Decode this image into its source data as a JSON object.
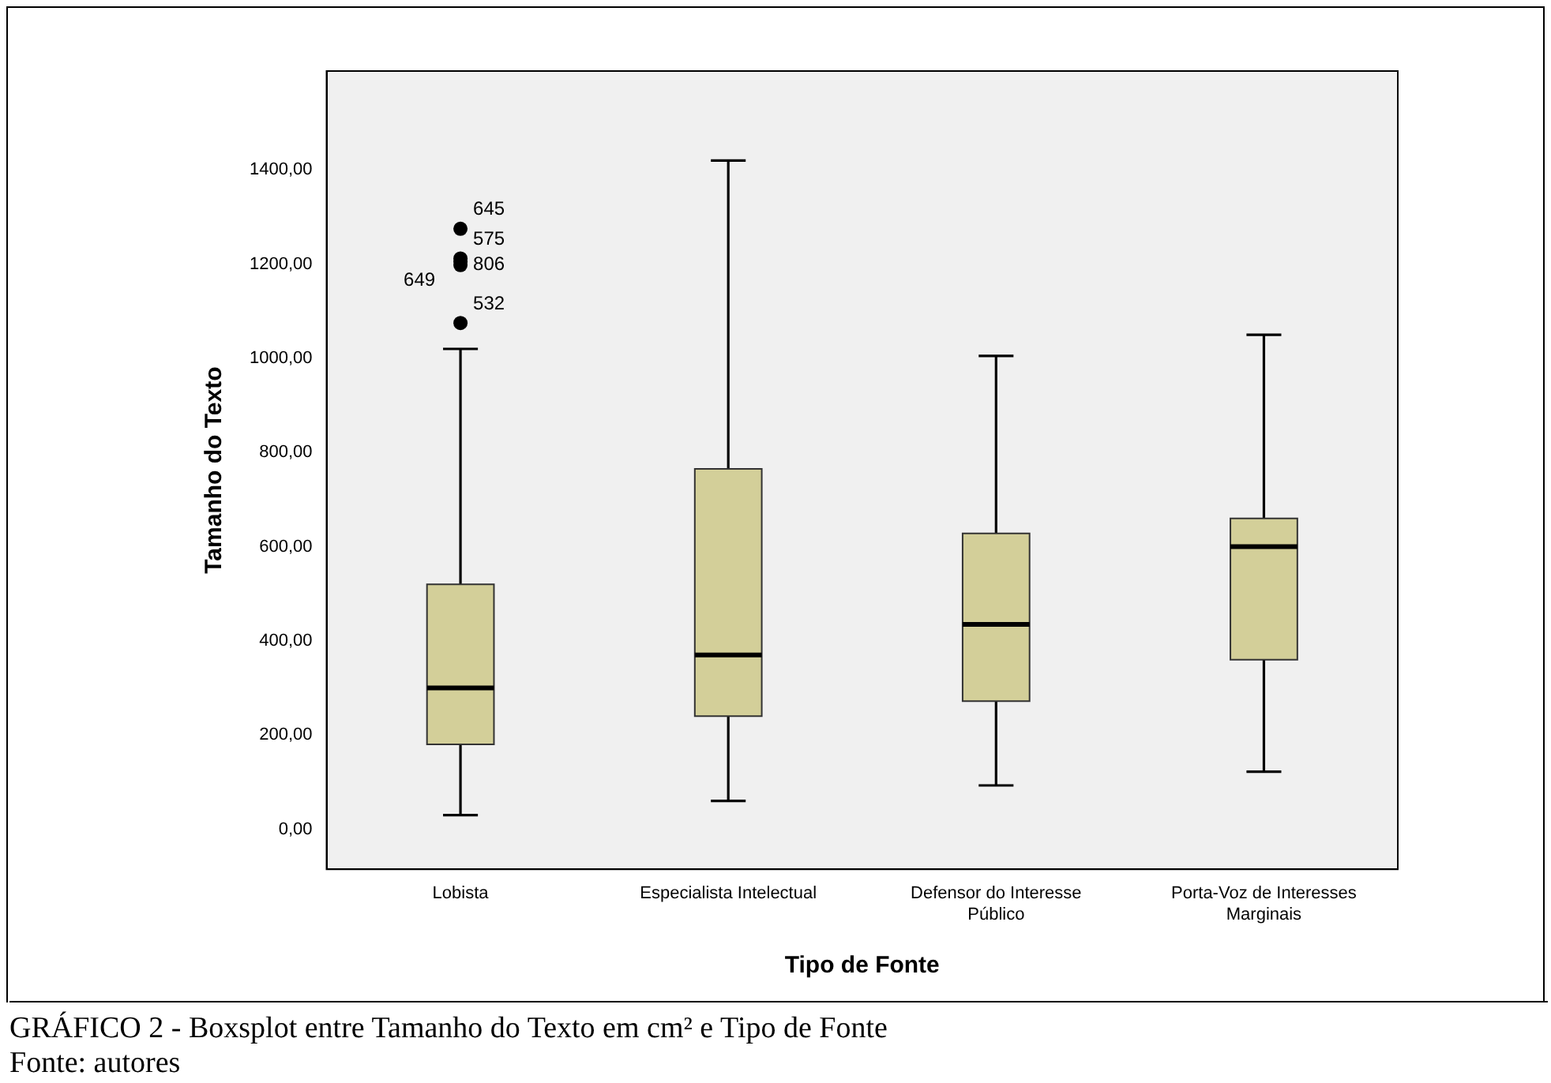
{
  "chart_data": {
    "type": "box",
    "xlabel": "Tipo de Fonte",
    "ylabel": "Tamanho do Texto",
    "categories": [
      "Lobista",
      "Especialista Intelectual",
      "Defensor do Interesse Público",
      "Porta-Voz de Interesses Marginais"
    ],
    "color": "#d3cf99",
    "boxes": [
      {
        "low": 30,
        "q1": 180,
        "median": 300,
        "q3": 520,
        "high": 1020,
        "outliers": [
          1275,
          1212,
          1205,
          1198,
          1075
        ]
      },
      {
        "low": 60,
        "q1": 240,
        "median": 370,
        "q3": 765,
        "high": 1420
      },
      {
        "low": 93,
        "q1": 272,
        "median": 435,
        "q3": 628,
        "high": 1005
      },
      {
        "low": 122,
        "q1": 360,
        "median": 600,
        "q3": 660,
        "high": 1050
      }
    ],
    "ylim": [
      -85,
      1610
    ],
    "yticks": [
      {
        "value": 0,
        "label": "0,00"
      },
      {
        "value": 200,
        "label": "200,00"
      },
      {
        "value": 400,
        "label": "400,00"
      },
      {
        "value": 600,
        "label": "600,00"
      },
      {
        "value": 800,
        "label": "800,00"
      },
      {
        "value": 1000,
        "label": "1000,00"
      },
      {
        "value": 1200,
        "label": "1200,00"
      },
      {
        "value": 1400,
        "label": "1400,00"
      }
    ],
    "grid": false,
    "legend": false,
    "annotations": [
      "645",
      "575",
      "806",
      "649",
      "532",
      "GRÁFICO 2 - Boxsplot entre Tamanho do Texto em cm² e Tipo de Fonte",
      "Fonte: autores"
    ]
  }
}
